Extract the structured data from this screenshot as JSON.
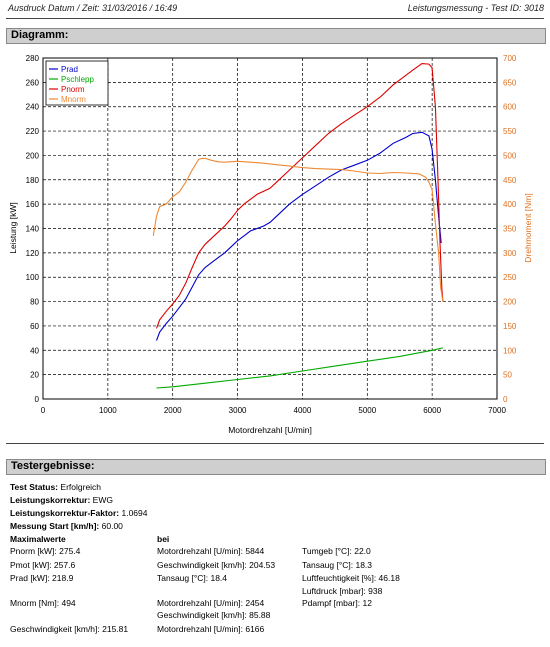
{
  "header": {
    "left": "Ausdruck Datum / Zeit: 31/03/2016 / 16:49",
    "right": "Leistungsmessung - Test ID: 3018"
  },
  "sections": {
    "diagram": "Diagramm:",
    "results": "Testergebnisse:"
  },
  "chart_data": {
    "type": "line",
    "xlabel": "Motordrehzahl [U/min]",
    "ylabel": "Leistung [kW]",
    "y2label": "Drehmoment [Nm]",
    "xlim": [
      0,
      7000
    ],
    "ylim": [
      0,
      280
    ],
    "y2lim": [
      0,
      700
    ],
    "x_ticks": [
      0,
      1000,
      2000,
      3000,
      4000,
      5000,
      6000,
      7000
    ],
    "y_ticks": [
      0,
      20,
      40,
      60,
      80,
      100,
      120,
      140,
      160,
      180,
      200,
      220,
      240,
      260,
      280
    ],
    "y2_ticks": [
      0,
      50,
      100,
      150,
      200,
      250,
      300,
      350,
      400,
      450,
      500,
      550,
      600,
      650,
      700
    ],
    "grid": true,
    "legend": "top-left",
    "series": [
      {
        "name": "Prad",
        "color": "#0000cc",
        "axis": "left",
        "points": [
          [
            1750,
            48
          ],
          [
            1800,
            55
          ],
          [
            1900,
            62
          ],
          [
            2000,
            68
          ],
          [
            2100,
            75
          ],
          [
            2200,
            82
          ],
          [
            2300,
            92
          ],
          [
            2400,
            102
          ],
          [
            2500,
            108
          ],
          [
            2600,
            112
          ],
          [
            2700,
            116
          ],
          [
            2800,
            120
          ],
          [
            2900,
            125
          ],
          [
            3000,
            130
          ],
          [
            3100,
            134
          ],
          [
            3200,
            138
          ],
          [
            3400,
            142
          ],
          [
            3500,
            145
          ],
          [
            3600,
            150
          ],
          [
            3800,
            160
          ],
          [
            4000,
            168
          ],
          [
            4200,
            175
          ],
          [
            4400,
            182
          ],
          [
            4600,
            188
          ],
          [
            4800,
            192
          ],
          [
            5000,
            196
          ],
          [
            5200,
            202
          ],
          [
            5400,
            210
          ],
          [
            5600,
            215
          ],
          [
            5700,
            218
          ],
          [
            5844,
            219
          ],
          [
            5950,
            216
          ],
          [
            6000,
            205
          ],
          [
            6050,
            180
          ],
          [
            6100,
            150
          ],
          [
            6140,
            128
          ]
        ]
      },
      {
        "name": "Pschlepp",
        "color": "#00aa00",
        "axis": "left",
        "points": [
          [
            1750,
            9
          ],
          [
            2000,
            10
          ],
          [
            2500,
            13
          ],
          [
            3000,
            16
          ],
          [
            3500,
            19
          ],
          [
            4000,
            23
          ],
          [
            4500,
            27
          ],
          [
            5000,
            31
          ],
          [
            5500,
            35
          ],
          [
            6000,
            40
          ],
          [
            6166,
            42
          ]
        ]
      },
      {
        "name": "Pnorm",
        "color": "#dd0000",
        "axis": "left",
        "points": [
          [
            1750,
            58
          ],
          [
            1800,
            65
          ],
          [
            1900,
            72
          ],
          [
            2000,
            78
          ],
          [
            2100,
            85
          ],
          [
            2200,
            95
          ],
          [
            2300,
            108
          ],
          [
            2400,
            120
          ],
          [
            2500,
            127
          ],
          [
            2600,
            132
          ],
          [
            2700,
            137
          ],
          [
            2800,
            142
          ],
          [
            2900,
            148
          ],
          [
            3000,
            155
          ],
          [
            3100,
            160
          ],
          [
            3300,
            168
          ],
          [
            3500,
            173
          ],
          [
            3600,
            178
          ],
          [
            3800,
            188
          ],
          [
            4000,
            198
          ],
          [
            4200,
            208
          ],
          [
            4400,
            218
          ],
          [
            4600,
            226
          ],
          [
            4800,
            233
          ],
          [
            5000,
            240
          ],
          [
            5200,
            248
          ],
          [
            5400,
            258
          ],
          [
            5600,
            266
          ],
          [
            5700,
            270
          ],
          [
            5844,
            275.4
          ],
          [
            5950,
            275
          ],
          [
            6000,
            272
          ],
          [
            6050,
            240
          ],
          [
            6090,
            180
          ],
          [
            6120,
            130
          ],
          [
            6150,
            90
          ],
          [
            6166,
            80
          ]
        ]
      },
      {
        "name": "Mnorm",
        "color": "#ee8833",
        "axis": "right",
        "points": [
          [
            1700,
            335
          ],
          [
            1750,
            375
          ],
          [
            1800,
            395
          ],
          [
            1900,
            400
          ],
          [
            2000,
            415
          ],
          [
            2100,
            425
          ],
          [
            2200,
            445
          ],
          [
            2300,
            470
          ],
          [
            2400,
            492
          ],
          [
            2454,
            494
          ],
          [
            2500,
            494
          ],
          [
            2600,
            490
          ],
          [
            2700,
            487
          ],
          [
            2800,
            486
          ],
          [
            3000,
            488
          ],
          [
            3200,
            486
          ],
          [
            3400,
            484
          ],
          [
            3600,
            481
          ],
          [
            3800,
            478
          ],
          [
            4000,
            475
          ],
          [
            4200,
            473
          ],
          [
            4400,
            472
          ],
          [
            4600,
            471
          ],
          [
            4800,
            468
          ],
          [
            5000,
            464
          ],
          [
            5200,
            463
          ],
          [
            5400,
            465
          ],
          [
            5600,
            464
          ],
          [
            5800,
            462
          ],
          [
            5900,
            455
          ],
          [
            5950,
            445
          ],
          [
            6000,
            430
          ],
          [
            6050,
            360
          ],
          [
            6100,
            300
          ],
          [
            6130,
            230
          ],
          [
            6166,
            200
          ]
        ]
      }
    ]
  },
  "results": {
    "status_label": "Test Status:",
    "status_value": "Erfolgreich",
    "korrektur_label": "Leistungskorrektur:",
    "korrektur_value": "EWG",
    "faktor_label": "Leistungskorrektur-Faktor:",
    "faktor_value": "1.0694",
    "start_label": "Messung Start [km/h]:",
    "start_value": "60.00",
    "max_heading": "Maximalwerte",
    "bei_heading": "bei",
    "c1": {
      "pnorm": "Pnorm [kW]: 275.4",
      "pmot": "Pmot [kW]: 257.6",
      "prad": "Prad [kW]: 218.9",
      "mnorm": "Mnorm [Nm]: 494",
      "speed": "Geschwindigkeit [km/h]: 215.81"
    },
    "c2": {
      "r1": "Motordrehzahl [U/min]: 5844",
      "r2": "Geschwindigkeit [km/h]: 204.53",
      "r3": "Tansaug [°C]: 18.4",
      "r4": "Motordrehzahl [U/min]: 2454",
      "r5": "Geschwindigkeit [km/h]: 85.88",
      "r6": "Motordrehzahl [U/min]: 6166"
    },
    "c3": {
      "r1": "Tumgeb [°C]: 22.0",
      "r2": "Tansaug [°C]: 18.3",
      "r3": "Luftfeuchtigkeit [%]: 46.18",
      "r4": "Luftdruck [mbar]: 938",
      "r5": "Pdampf [mbar]: 12"
    }
  }
}
